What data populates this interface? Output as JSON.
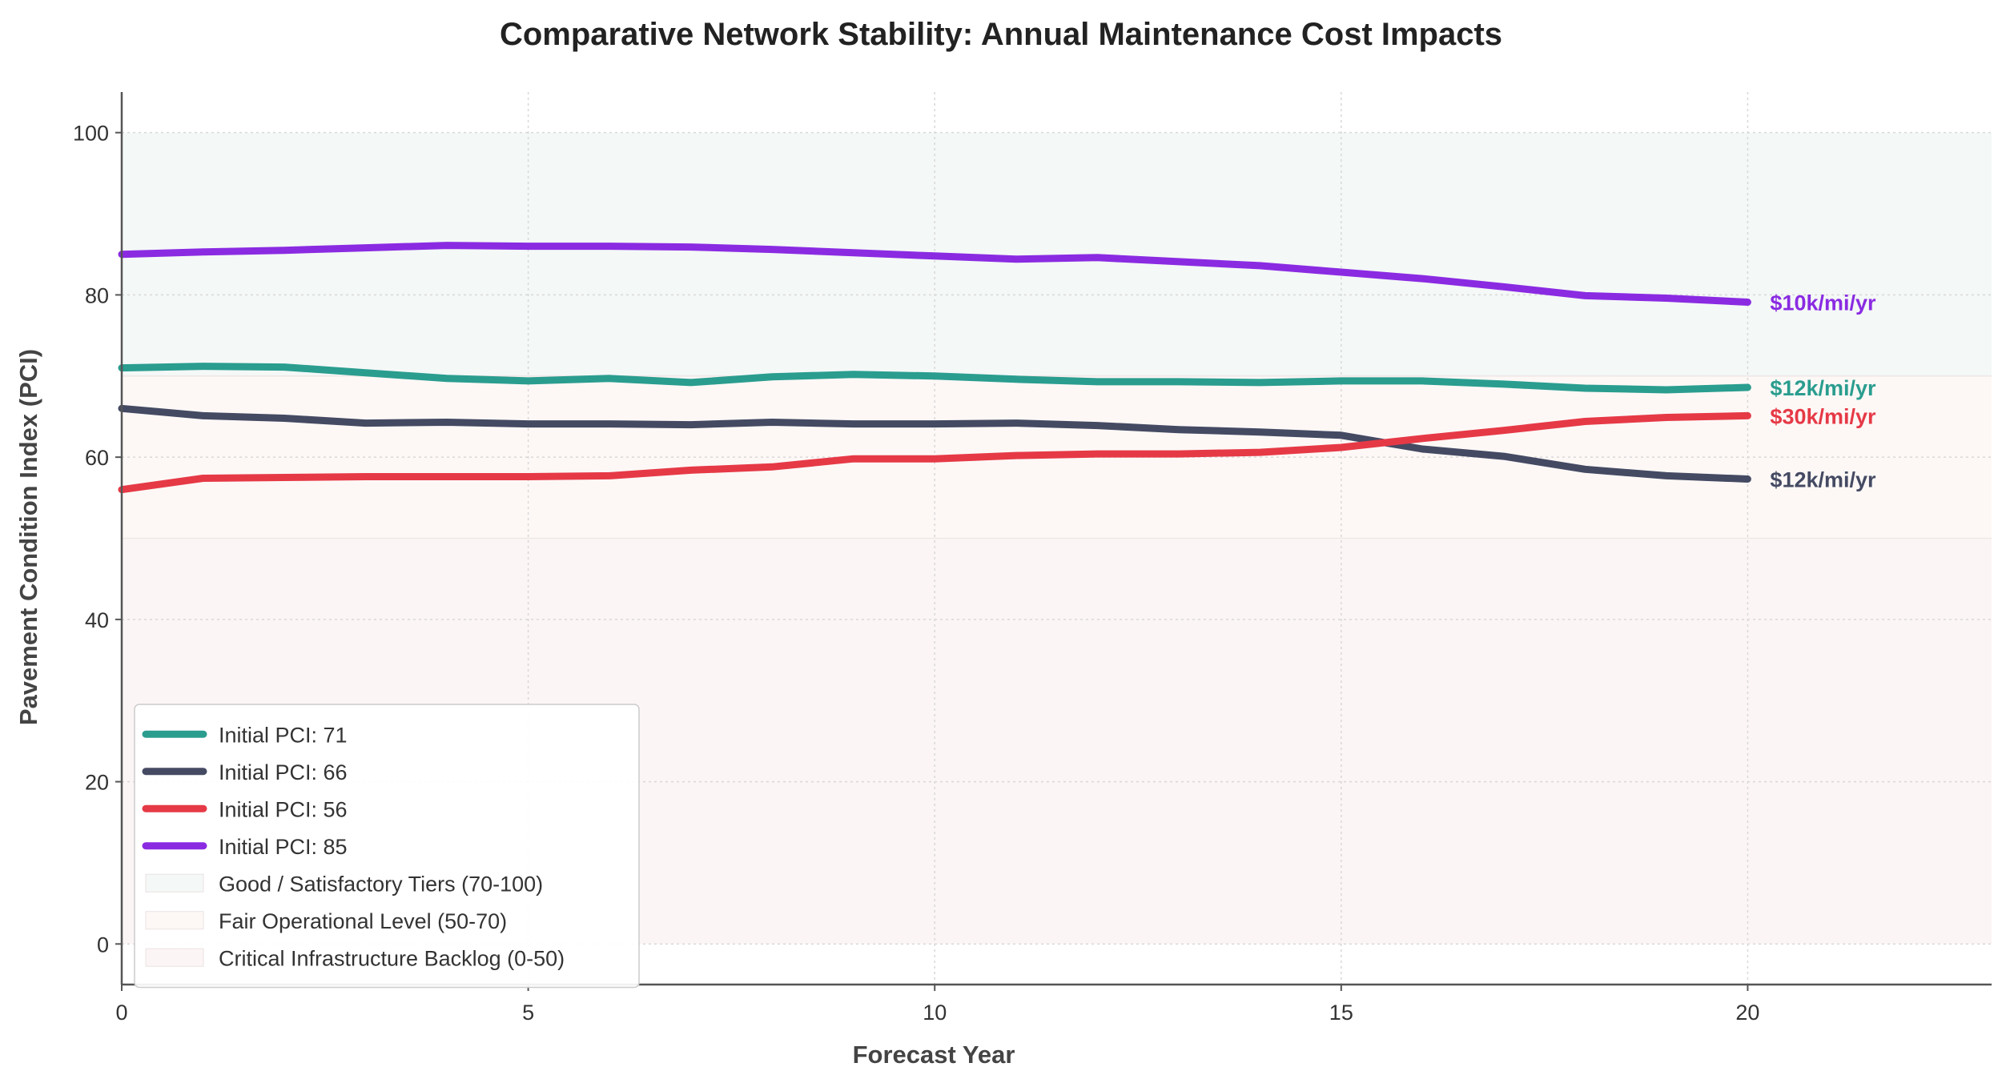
{
  "chart_data": {
    "type": "line",
    "title": "Comparative Network Stability: Annual Maintenance Cost Impacts",
    "xlabel": "Forecast Year",
    "ylabel": "Pavement Condition Index (PCI)",
    "xlim": [
      0,
      23
    ],
    "ylim": [
      -5,
      105
    ],
    "xticks": [
      0,
      5,
      10,
      15,
      20
    ],
    "yticks": [
      0,
      20,
      40,
      60,
      80,
      100
    ],
    "grid": true,
    "legend_position": "bottom-left",
    "x": [
      0,
      1,
      2,
      3,
      4,
      5,
      6,
      7,
      8,
      9,
      10,
      11,
      12,
      13,
      14,
      15,
      16,
      17,
      18,
      19,
      20
    ],
    "bands": [
      {
        "name": "Good / Satisfactory Tiers (70-100)",
        "from": 70,
        "to": 100,
        "color": "#f4f8f7"
      },
      {
        "name": "Fair Operational Level (50-70)",
        "from": 50,
        "to": 70,
        "color": "#fdf8f6"
      },
      {
        "name": "Critical Infrastructure Backlog (0-50)",
        "from": 0,
        "to": 50,
        "color": "#fcf5f5"
      }
    ],
    "series": [
      {
        "name": "Initial PCI: 71",
        "color": "#2a9d8f",
        "end_label": "$12k/mi/yr",
        "values": [
          71.0,
          71.2,
          71.1,
          70.4,
          69.7,
          69.4,
          69.7,
          69.2,
          69.9,
          70.2,
          70.0,
          69.6,
          69.3,
          69.3,
          69.2,
          69.4,
          69.4,
          69.0,
          68.5,
          68.3,
          68.6
        ]
      },
      {
        "name": "Initial PCI: 66",
        "color": "#454a63",
        "end_label": "$12k/mi/yr",
        "values": [
          66.0,
          65.1,
          64.8,
          64.2,
          64.3,
          64.1,
          64.1,
          64.0,
          64.3,
          64.1,
          64.1,
          64.2,
          63.9,
          63.4,
          63.1,
          62.7,
          61.0,
          60.1,
          58.5,
          57.7,
          57.3
        ]
      },
      {
        "name": "Initial PCI: 56",
        "color": "#e63946",
        "end_label": "$30k/mi/yr",
        "values": [
          56.0,
          57.4,
          57.5,
          57.6,
          57.6,
          57.6,
          57.7,
          58.4,
          58.8,
          59.8,
          59.8,
          60.2,
          60.4,
          60.4,
          60.6,
          61.2,
          62.3,
          63.3,
          64.4,
          64.9,
          65.1
        ]
      },
      {
        "name": "Initial PCI: 85",
        "color": "#8a2be2",
        "end_label": "$10k/mi/yr",
        "values": [
          85.0,
          85.3,
          85.5,
          85.8,
          86.1,
          86.0,
          86.0,
          85.9,
          85.6,
          85.2,
          84.8,
          84.4,
          84.6,
          84.1,
          83.6,
          82.8,
          82.0,
          81.0,
          79.9,
          79.6,
          79.1
        ]
      }
    ]
  }
}
